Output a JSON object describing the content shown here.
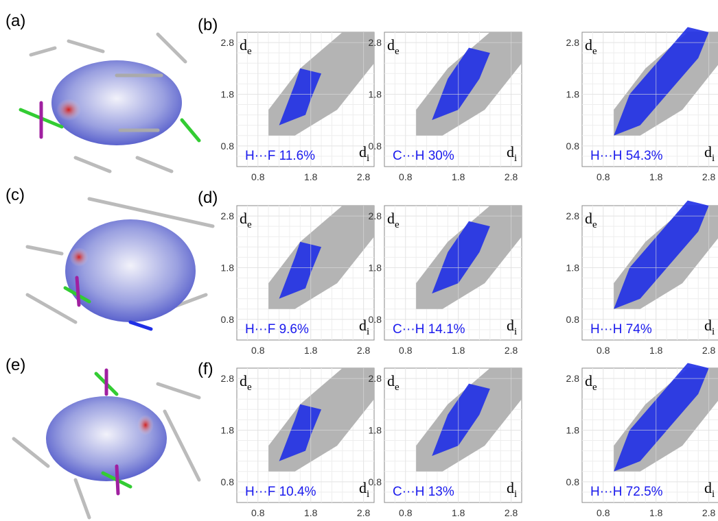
{
  "panels": [
    "(a)",
    "(b)",
    "(c)",
    "(d)",
    "(e)",
    "(f)"
  ],
  "chart_data": [
    {
      "type": "fingerprint",
      "annotation": "H···F 11.6%",
      "y_label": [
        "d",
        "e"
      ],
      "x_label": [
        "d",
        "i"
      ],
      "xlim": [
        0.4,
        3.0
      ],
      "ylim": [
        0.4,
        3.0
      ],
      "xticks": [
        0.8,
        1.8,
        2.8
      ],
      "yticks": [
        0.8,
        1.8,
        2.8
      ],
      "color": "#1f2fe6",
      "grid": true
    },
    {
      "type": "fingerprint",
      "annotation": "C···H 30%",
      "y_label": [
        "d",
        "e"
      ],
      "x_label": [
        "d",
        "i"
      ],
      "xlim": [
        0.4,
        3.0
      ],
      "ylim": [
        0.4,
        3.0
      ],
      "xticks": [
        0.8,
        1.8,
        2.8
      ],
      "yticks": [
        0.8,
        1.8,
        2.8
      ],
      "color": "#1f2fe6",
      "grid": true
    },
    {
      "type": "fingerprint",
      "annotation": "H···H 54.3%",
      "y_label": [
        "d",
        "e"
      ],
      "x_label": [
        "d",
        "i"
      ],
      "xlim": [
        0.4,
        3.0
      ],
      "ylim": [
        0.4,
        3.0
      ],
      "xticks": [
        0.8,
        1.8,
        2.8
      ],
      "yticks": [
        0.8,
        1.8,
        2.8
      ],
      "color": "#1f2fe6",
      "grid": true
    },
    {
      "type": "fingerprint",
      "annotation": "H···F 9.6%",
      "y_label": [
        "d",
        "e"
      ],
      "x_label": [
        "d",
        "i"
      ],
      "xlim": [
        0.4,
        3.0
      ],
      "ylim": [
        0.4,
        3.0
      ],
      "xticks": [
        0.8,
        1.8,
        2.8
      ],
      "yticks": [
        0.8,
        1.8,
        2.8
      ],
      "color": "#1f2fe6",
      "grid": true
    },
    {
      "type": "fingerprint",
      "annotation": "C···H 14.1%",
      "y_label": [
        "d",
        "e"
      ],
      "x_label": [
        "d",
        "i"
      ],
      "xlim": [
        0.4,
        3.0
      ],
      "ylim": [
        0.4,
        3.0
      ],
      "xticks": [
        0.8,
        1.8,
        2.8
      ],
      "yticks": [
        0.8,
        1.8,
        2.8
      ],
      "color": "#1f2fe6",
      "grid": true
    },
    {
      "type": "fingerprint",
      "annotation": "H···H 74%",
      "y_label": [
        "d",
        "e"
      ],
      "x_label": [
        "d",
        "i"
      ],
      "xlim": [
        0.4,
        3.0
      ],
      "ylim": [
        0.4,
        3.0
      ],
      "xticks": [
        0.8,
        1.8,
        2.8
      ],
      "yticks": [
        0.8,
        1.8,
        2.8
      ],
      "color": "#1f2fe6",
      "grid": true
    },
    {
      "type": "fingerprint",
      "annotation": "H···F 10.4%",
      "y_label": [
        "d",
        "e"
      ],
      "x_label": [
        "d",
        "i"
      ],
      "xlim": [
        0.4,
        3.0
      ],
      "ylim": [
        0.4,
        3.0
      ],
      "xticks": [
        0.8,
        1.8,
        2.8
      ],
      "yticks": [
        0.8,
        1.8,
        2.8
      ],
      "color": "#1f2fe6",
      "grid": true
    },
    {
      "type": "fingerprint",
      "annotation": "C···H 13%",
      "y_label": [
        "d",
        "e"
      ],
      "x_label": [
        "d",
        "i"
      ],
      "xlim": [
        0.4,
        3.0
      ],
      "ylim": [
        0.4,
        3.0
      ],
      "xticks": [
        0.8,
        1.8,
        2.8
      ],
      "yticks": [
        0.8,
        1.8,
        2.8
      ],
      "color": "#1f2fe6",
      "grid": true
    },
    {
      "type": "fingerprint",
      "annotation": "H···H 72.5%",
      "y_label": [
        "d",
        "e"
      ],
      "x_label": [
        "d",
        "i"
      ],
      "xlim": [
        0.4,
        3.0
      ],
      "ylim": [
        0.4,
        3.0
      ],
      "xticks": [
        0.8,
        1.8,
        2.8
      ],
      "yticks": [
        0.8,
        1.8,
        2.8
      ],
      "color": "#1f2fe6",
      "grid": true
    }
  ]
}
